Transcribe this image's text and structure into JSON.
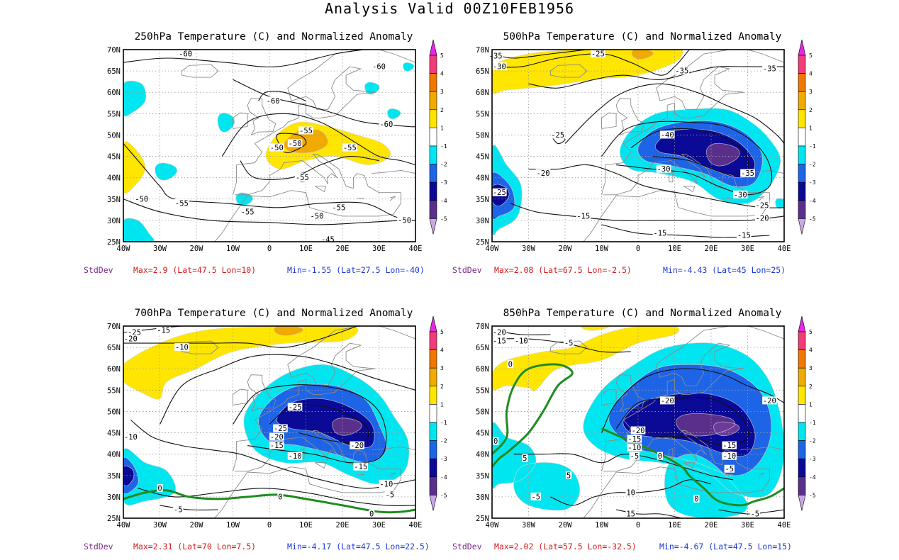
{
  "title": "Analysis Valid 00Z10FEB1956",
  "colors": {
    "anom_neg5": "#6b3a9a",
    "anom_neg4": "#5a2f8c",
    "anom_neg3": "#0a0a96",
    "anom_neg2": "#1e64e6",
    "anom_neg1": "#00e6f0",
    "anom_pos1": "#ffe600",
    "anom_pos2": "#f0aa00",
    "anom_pos3": "#f07800",
    "anom_pos4": "#f03c78",
    "anom_pos5": "#e628e6",
    "zero_contour": "#1e8c1e",
    "coast": "#8a8a8a"
  },
  "map": {
    "lon_labels": [
      "40W",
      "30W",
      "20W",
      "10W",
      "0",
      "10E",
      "20E",
      "30E",
      "40E"
    ],
    "lat_labels": [
      "70N",
      "65N",
      "60N",
      "55N",
      "50N",
      "45N",
      "40N",
      "35N",
      "30N",
      "25N"
    ]
  },
  "colorbar": {
    "labels": [
      "5",
      "4",
      "3",
      "2",
      "1",
      "-1",
      "-2",
      "-3",
      "-4",
      "-5"
    ]
  },
  "panels": [
    {
      "id": "p250",
      "title": "250hPa Temperature (C) and Normalized Anomaly",
      "stat_label": "StdDev",
      "max_text": "Max=2.9 (Lat=47.5 Lon=10)",
      "min_text": "Min=-1.55 (Lat=27.5 Lon=-40)",
      "contour_labels": [
        {
          "t": "-60",
          "lon": -23,
          "lat": 69
        },
        {
          "t": "-60",
          "lon": 1,
          "lat": 58
        },
        {
          "t": "-60",
          "lon": 30,
          "lat": 66
        },
        {
          "t": "-60",
          "lon": 32,
          "lat": 52.5
        },
        {
          "t": "-55",
          "lon": 10,
          "lat": 51
        },
        {
          "t": "-50",
          "lon": 7,
          "lat": 48
        },
        {
          "t": "-50",
          "lon": 2,
          "lat": 47
        },
        {
          "t": "-55",
          "lon": 22,
          "lat": 47
        },
        {
          "t": "-55",
          "lon": 9,
          "lat": 40
        },
        {
          "t": "-50",
          "lon": -35,
          "lat": 35
        },
        {
          "t": "-55",
          "lon": -24,
          "lat": 34
        },
        {
          "t": "-55",
          "lon": -6,
          "lat": 32
        },
        {
          "t": "-55",
          "lon": 19,
          "lat": 33
        },
        {
          "t": "-50",
          "lon": 13,
          "lat": 31
        },
        {
          "t": "-50",
          "lon": 37,
          "lat": 30
        },
        {
          "t": "-45",
          "lon": 16,
          "lat": 25.5
        }
      ]
    },
    {
      "id": "p500",
      "title": "500hPa Temperature (C) and Normalized Anomaly",
      "stat_label": "StdDev",
      "max_text": "Max=2.08 (Lat=67.5 Lon=-2.5)",
      "min_text": "Min=-4.43 (Lat=45 Lon=25)",
      "contour_labels": [
        {
          "t": "-35",
          "lon": -39,
          "lat": 68.5
        },
        {
          "t": "-30",
          "lon": -38,
          "lat": 66
        },
        {
          "t": "-25",
          "lon": -11,
          "lat": 69
        },
        {
          "t": "-35",
          "lon": 12,
          "lat": 65
        },
        {
          "t": "-35",
          "lon": 36,
          "lat": 65.5
        },
        {
          "t": "-25",
          "lon": -22,
          "lat": 50
        },
        {
          "t": "-40",
          "lon": 8,
          "lat": 50
        },
        {
          "t": "-30",
          "lon": 7,
          "lat": 42
        },
        {
          "t": "-35",
          "lon": 30,
          "lat": 41
        },
        {
          "t": "-20",
          "lon": -26,
          "lat": 41
        },
        {
          "t": "-25",
          "lon": -38,
          "lat": 36.5
        },
        {
          "t": "-30",
          "lon": 28,
          "lat": 36
        },
        {
          "t": "-25",
          "lon": 34,
          "lat": 33.5
        },
        {
          "t": "-15",
          "lon": -15,
          "lat": 31
        },
        {
          "t": "-20",
          "lon": 34,
          "lat": 30.5
        },
        {
          "t": "-15",
          "lon": 6,
          "lat": 27
        },
        {
          "t": "-15",
          "lon": 29,
          "lat": 26.5
        }
      ]
    },
    {
      "id": "p700",
      "title": "700hPa Temperature (C) and Normalized Anomaly",
      "stat_label": "StdDev",
      "max_text": "Max=2.31 (Lat=70 Lon=7.5)",
      "min_text": "Min=-4.17 (Lat=47.5 Lon=22.5)",
      "contour_labels": [
        {
          "t": "-25",
          "lon": -37,
          "lat": 68.5
        },
        {
          "t": "-15",
          "lon": -29,
          "lat": 69
        },
        {
          "t": "-20",
          "lon": -38,
          "lat": 67
        },
        {
          "t": "-10",
          "lon": -24,
          "lat": 65
        },
        {
          "t": "-25",
          "lon": 7,
          "lat": 51
        },
        {
          "t": "-25",
          "lon": 3,
          "lat": 46
        },
        {
          "t": "-20",
          "lon": 2,
          "lat": 44
        },
        {
          "t": "-15",
          "lon": 2,
          "lat": 42
        },
        {
          "t": "-20",
          "lon": 24,
          "lat": 42
        },
        {
          "t": "-10",
          "lon": 7,
          "lat": 39.5
        },
        {
          "t": "-15",
          "lon": 25,
          "lat": 37
        },
        {
          "t": "-10",
          "lon": -38,
          "lat": 44
        },
        {
          "t": "-10",
          "lon": 32,
          "lat": 33
        },
        {
          "t": "-5",
          "lon": 33,
          "lat": 30.5
        },
        {
          "t": "0",
          "lon": -30,
          "lat": 32
        },
        {
          "t": "0",
          "lon": 3,
          "lat": 30
        },
        {
          "t": "0",
          "lon": 28,
          "lat": 26
        },
        {
          "t": "-5",
          "lon": -25,
          "lat": 27
        }
      ]
    },
    {
      "id": "p850",
      "title": "850hPa Temperature (C) and Normalized Anomaly",
      "stat_label": "StdDev",
      "max_text": "Max=2.02 (Lat=57.5 Lon=-32.5)",
      "min_text": "Min=-4.67 (Lat=47.5 Lon=15)",
      "contour_labels": [
        {
          "t": "-20",
          "lon": -38,
          "lat": 68.5
        },
        {
          "t": "-15",
          "lon": -38,
          "lat": 66.5
        },
        {
          "t": "-10",
          "lon": -32,
          "lat": 66.5
        },
        {
          "t": "-5",
          "lon": -19,
          "lat": 66
        },
        {
          "t": "0",
          "lon": -35,
          "lat": 61
        },
        {
          "t": "-20",
          "lon": 8,
          "lat": 52.5
        },
        {
          "t": "-20",
          "lon": 36,
          "lat": 52.5
        },
        {
          "t": "-20",
          "lon": 0,
          "lat": 45.5
        },
        {
          "t": "-15",
          "lon": -1,
          "lat": 43.5
        },
        {
          "t": "-10",
          "lon": -1,
          "lat": 41.5
        },
        {
          "t": "-5",
          "lon": -1,
          "lat": 39.5
        },
        {
          "t": "-15",
          "lon": 25,
          "lat": 42
        },
        {
          "t": "-10",
          "lon": 25,
          "lat": 39.5
        },
        {
          "t": "-5",
          "lon": 25,
          "lat": 36.5
        },
        {
          "t": "0",
          "lon": -39,
          "lat": 43
        },
        {
          "t": "0",
          "lon": 6,
          "lat": 39.5
        },
        {
          "t": "5",
          "lon": -31,
          "lat": 39
        },
        {
          "t": "5",
          "lon": -19,
          "lat": 35
        },
        {
          "t": "-5",
          "lon": -28,
          "lat": 30
        },
        {
          "t": "10",
          "lon": -2,
          "lat": 31
        },
        {
          "t": "15",
          "lon": -2,
          "lat": 26
        },
        {
          "t": "0",
          "lon": 16,
          "lat": 29.5
        },
        {
          "t": "-5",
          "lon": 32,
          "lat": 26
        }
      ]
    }
  ]
}
